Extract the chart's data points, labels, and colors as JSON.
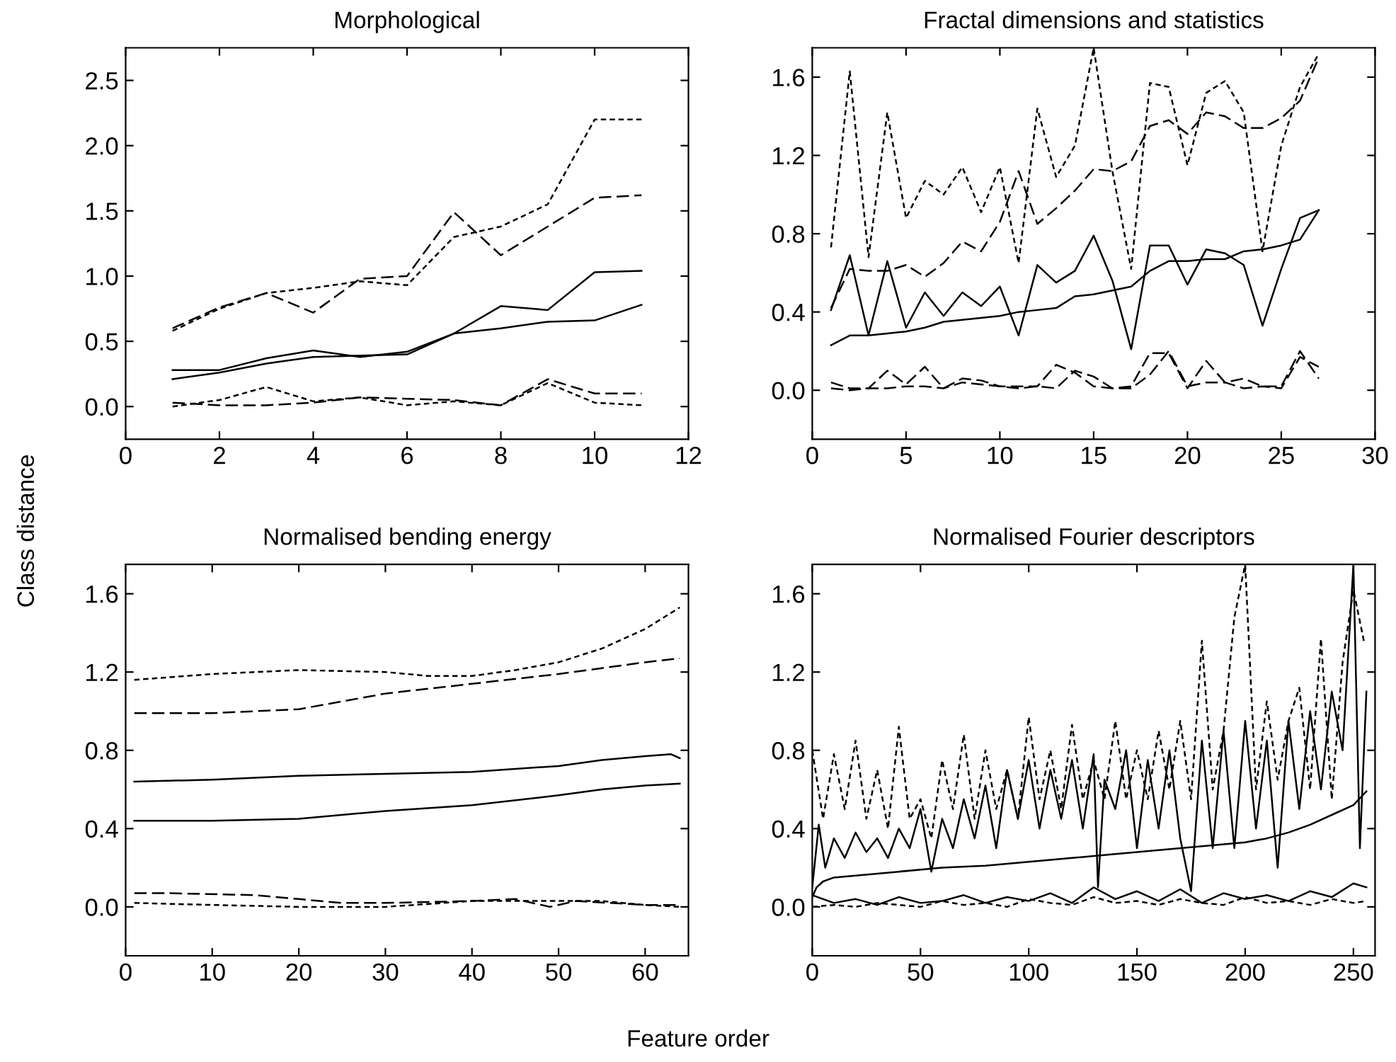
{
  "chart_data": [
    {
      "type": "line",
      "title": "Morphological",
      "ylabel": "Class distance",
      "xlim": [
        0,
        12
      ],
      "ylim": [
        -0.25,
        2.75
      ],
      "xticks": [
        0,
        2,
        4,
        6,
        8,
        10,
        12
      ],
      "yticks": [
        {
          "value": 0,
          "label": "0.0"
        },
        0.5,
        {
          "value": 1,
          "label": "1.0"
        },
        1.5,
        {
          "value": 2,
          "label": "2.0"
        },
        2.5
      ],
      "grid": false,
      "legend": false,
      "series": [
        {
          "color": "#000000",
          "line_style": "dotted",
          "x": [
            1,
            2,
            3,
            4,
            5,
            6,
            7,
            8,
            9,
            10,
            11
          ],
          "values": [
            0.58,
            0.75,
            0.87,
            0.91,
            0.96,
            0.93,
            1.3,
            1.38,
            1.55,
            2.2,
            2.2
          ]
        },
        {
          "color": "#000000",
          "line_style": "dashed",
          "x": [
            1,
            2,
            3,
            4,
            5,
            6,
            7,
            8,
            9,
            10,
            11
          ],
          "values": [
            0.6,
            0.76,
            0.87,
            0.72,
            0.98,
            1.0,
            1.49,
            1.16,
            1.38,
            1.6,
            1.62
          ]
        },
        {
          "color": "#000000",
          "line_style": "solid",
          "x": [
            1,
            2,
            3,
            4,
            5,
            6,
            7,
            8,
            9,
            10,
            11
          ],
          "values": [
            0.28,
            0.28,
            0.37,
            0.43,
            0.38,
            0.42,
            0.56,
            0.77,
            0.74,
            1.03,
            1.04
          ]
        },
        {
          "color": "#000000",
          "line_style": "solid",
          "x": [
            1,
            2,
            3,
            4,
            5,
            6,
            7,
            8,
            9,
            10,
            11
          ],
          "values": [
            0.21,
            0.26,
            0.33,
            0.38,
            0.39,
            0.4,
            0.56,
            0.6,
            0.65,
            0.66,
            0.78
          ]
        },
        {
          "color": "#000000",
          "line_style": "dashed",
          "x": [
            1,
            2,
            3,
            4,
            5,
            6,
            7,
            8,
            9,
            10,
            11
          ],
          "values": [
            0.03,
            0.01,
            0.01,
            0.03,
            0.07,
            0.06,
            0.05,
            0.01,
            0.21,
            0.1,
            0.1
          ]
        },
        {
          "color": "#000000",
          "line_style": "dotted",
          "x": [
            1,
            2,
            3,
            4,
            5,
            6,
            7,
            8,
            9,
            10,
            11
          ],
          "values": [
            0.0,
            0.05,
            0.15,
            0.04,
            0.07,
            0.01,
            0.04,
            0.01,
            0.18,
            0.03,
            0.01
          ]
        }
      ]
    },
    {
      "type": "line",
      "title": "Fractal dimensions and statistics",
      "xlim": [
        0,
        30
      ],
      "ylim": [
        -0.25,
        1.75
      ],
      "xticks": [
        0,
        5,
        10,
        15,
        20,
        25,
        30
      ],
      "yticks": [
        {
          "value": 0,
          "label": "0.0"
        },
        0.4,
        0.8,
        1.2,
        1.6
      ],
      "grid": false,
      "legend": false,
      "series": [
        {
          "color": "#000000",
          "line_style": "dotted",
          "x": [
            1,
            2,
            3,
            4,
            5,
            6,
            7,
            8,
            9,
            10,
            11,
            12,
            13,
            14,
            15,
            16,
            17,
            18,
            19,
            20,
            21,
            22,
            23,
            24,
            25,
            26,
            27
          ],
          "values": [
            0.73,
            1.63,
            0.68,
            1.42,
            0.88,
            1.07,
            1.0,
            1.14,
            0.91,
            1.14,
            0.65,
            1.44,
            1.09,
            1.25,
            1.75,
            1.12,
            0.62,
            1.57,
            1.55,
            1.15,
            1.52,
            1.58,
            1.42,
            0.71,
            1.25,
            1.55,
            1.72
          ]
        },
        {
          "color": "#000000",
          "line_style": "dashed",
          "x": [
            1,
            2,
            3,
            4,
            5,
            6,
            7,
            8,
            9,
            10,
            11,
            12,
            13,
            14,
            15,
            16,
            17,
            18,
            19,
            20,
            21,
            22,
            23,
            24,
            25,
            26,
            27
          ],
          "values": [
            0.42,
            0.62,
            0.61,
            0.61,
            0.64,
            0.58,
            0.65,
            0.76,
            0.71,
            0.86,
            1.12,
            0.85,
            0.93,
            1.02,
            1.13,
            1.12,
            1.17,
            1.35,
            1.38,
            1.31,
            1.42,
            1.4,
            1.34,
            1.34,
            1.39,
            1.48,
            1.7
          ]
        },
        {
          "color": "#000000",
          "line_style": "solid",
          "x": [
            1,
            2,
            3,
            4,
            5,
            6,
            7,
            8,
            9,
            10,
            11,
            12,
            13,
            14,
            15,
            16,
            17,
            18,
            19,
            20,
            21,
            22,
            23,
            24,
            25,
            26,
            27
          ],
          "values": [
            0.41,
            0.69,
            0.28,
            0.66,
            0.32,
            0.5,
            0.38,
            0.5,
            0.43,
            0.53,
            0.28,
            0.64,
            0.55,
            0.61,
            0.79,
            0.56,
            0.21,
            0.74,
            0.74,
            0.54,
            0.72,
            0.7,
            0.64,
            0.33,
            0.62,
            0.88,
            0.92
          ]
        },
        {
          "color": "#000000",
          "line_style": "solid",
          "x": [
            1,
            2,
            3,
            4,
            5,
            6,
            7,
            8,
            9,
            10,
            11,
            12,
            13,
            14,
            15,
            16,
            17,
            18,
            19,
            20,
            21,
            22,
            23,
            24,
            25,
            26,
            27
          ],
          "values": [
            0.23,
            0.28,
            0.28,
            0.29,
            0.3,
            0.32,
            0.35,
            0.36,
            0.37,
            0.38,
            0.4,
            0.41,
            0.42,
            0.48,
            0.49,
            0.51,
            0.53,
            0.61,
            0.66,
            0.66,
            0.67,
            0.67,
            0.71,
            0.72,
            0.74,
            0.77,
            0.92
          ]
        },
        {
          "color": "#000000",
          "line_style": "dashed",
          "x": [
            1,
            2,
            3,
            4,
            5,
            6,
            7,
            8,
            9,
            10,
            11,
            12,
            13,
            14,
            15,
            16,
            17,
            18,
            19,
            20,
            21,
            22,
            23,
            24,
            25,
            26,
            27
          ],
          "values": [
            0.04,
            0.01,
            0.01,
            0.1,
            0.03,
            0.12,
            0.01,
            0.06,
            0.05,
            0.02,
            0.02,
            0.02,
            0.13,
            0.09,
            0.02,
            0.01,
            0.02,
            0.19,
            0.19,
            0.01,
            0.15,
            0.04,
            0.06,
            0.02,
            0.02,
            0.2,
            0.06
          ]
        },
        {
          "color": "#000000",
          "line_style": "dashed",
          "x": [
            1,
            2,
            3,
            4,
            5,
            6,
            7,
            8,
            9,
            10,
            11,
            12,
            13,
            14,
            15,
            16,
            17,
            18,
            19,
            20,
            21,
            22,
            23,
            24,
            25,
            26,
            27
          ],
          "values": [
            0.01,
            0.0,
            0.01,
            0.01,
            0.02,
            0.02,
            0.01,
            0.04,
            0.03,
            0.02,
            0.01,
            0.02,
            0.01,
            0.1,
            0.07,
            0.01,
            0.01,
            0.08,
            0.2,
            0.02,
            0.04,
            0.04,
            0.01,
            0.02,
            0.01,
            0.17,
            0.12
          ]
        }
      ]
    },
    {
      "type": "line",
      "title": "Normalised bending energy",
      "xlim": [
        0,
        65
      ],
      "ylim": [
        -0.25,
        1.75
      ],
      "xticks": [
        0,
        10,
        20,
        30,
        40,
        50,
        60
      ],
      "yticks": [
        {
          "value": 0,
          "label": "0.0"
        },
        0.4,
        0.8,
        1.2,
        1.6
      ],
      "grid": false,
      "legend": false,
      "series": [
        {
          "color": "#000000",
          "line_style": "dotted",
          "x": [
            1,
            10,
            20,
            30,
            35,
            40,
            45,
            50,
            55,
            60,
            64
          ],
          "values": [
            1.16,
            1.19,
            1.21,
            1.2,
            1.18,
            1.18,
            1.21,
            1.25,
            1.32,
            1.42,
            1.53
          ]
        },
        {
          "color": "#000000",
          "line_style": "dashed",
          "x": [
            1,
            10,
            15,
            20,
            25,
            30,
            40,
            50,
            55,
            60,
            64
          ],
          "values": [
            0.99,
            0.99,
            1.0,
            1.01,
            1.05,
            1.09,
            1.14,
            1.19,
            1.22,
            1.25,
            1.27
          ]
        },
        {
          "color": "#000000",
          "line_style": "solid",
          "x": [
            1,
            10,
            20,
            30,
            40,
            50,
            55,
            60,
            63,
            64
          ],
          "values": [
            0.64,
            0.65,
            0.67,
            0.68,
            0.69,
            0.72,
            0.75,
            0.77,
            0.78,
            0.76
          ]
        },
        {
          "color": "#000000",
          "line_style": "solid",
          "x": [
            1,
            10,
            20,
            30,
            40,
            50,
            55,
            60,
            64
          ],
          "values": [
            0.44,
            0.44,
            0.45,
            0.49,
            0.52,
            0.57,
            0.6,
            0.62,
            0.63
          ]
        },
        {
          "color": "#000000",
          "line_style": "dashed",
          "x": [
            1,
            5,
            15,
            20,
            25,
            30,
            40,
            45,
            49,
            52,
            60,
            64
          ],
          "values": [
            0.07,
            0.07,
            0.06,
            0.04,
            0.02,
            0.02,
            0.03,
            0.04,
            0.0,
            0.03,
            0.01,
            0.01
          ]
        },
        {
          "color": "#000000",
          "line_style": "dotted",
          "x": [
            1,
            10,
            20,
            30,
            40,
            45,
            50,
            55,
            60,
            64
          ],
          "values": [
            0.02,
            0.01,
            0.0,
            0.0,
            0.03,
            0.03,
            0.03,
            0.03,
            0.01,
            0.0
          ]
        }
      ]
    },
    {
      "type": "line",
      "title": "Normalised Fourier descriptors",
      "xlabel": "Feature order",
      "xlim": [
        0,
        260
      ],
      "ylim": [
        -0.25,
        1.75
      ],
      "xticks": [
        0,
        50,
        100,
        150,
        200,
        250
      ],
      "yticks": [
        {
          "value": 0,
          "label": "0.0"
        },
        0.4,
        0.8,
        1.2,
        1.6
      ],
      "grid": false,
      "legend": false,
      "series": [
        {
          "color": "#000000",
          "line_style": "dotted",
          "x": [
            0,
            5,
            10,
            15,
            20,
            25,
            30,
            35,
            40,
            45,
            50,
            55,
            60,
            65,
            70,
            75,
            80,
            85,
            90,
            95,
            100,
            105,
            110,
            115,
            120,
            125,
            130,
            135,
            140,
            145,
            150,
            155,
            160,
            165,
            170,
            175,
            180,
            185,
            190,
            195,
            200,
            205,
            210,
            215,
            220,
            225,
            230,
            235,
            240,
            245,
            250,
            255
          ],
          "values": [
            0.8,
            0.45,
            0.78,
            0.5,
            0.85,
            0.45,
            0.7,
            0.4,
            0.92,
            0.45,
            0.55,
            0.35,
            0.75,
            0.5,
            0.88,
            0.45,
            0.8,
            0.5,
            0.7,
            0.45,
            0.97,
            0.55,
            0.8,
            0.5,
            0.93,
            0.55,
            0.75,
            0.55,
            0.95,
            0.55,
            0.8,
            0.55,
            0.9,
            0.6,
            0.95,
            0.55,
            1.36,
            0.6,
            0.9,
            1.48,
            1.75,
            0.6,
            1.05,
            0.65,
            0.95,
            1.12,
            0.6,
            1.37,
            0.55,
            1.25,
            1.62,
            1.35
          ]
        },
        {
          "color": "#000000",
          "line_style": "solid",
          "x": [
            0,
            3,
            6,
            10,
            15,
            20,
            25,
            30,
            35,
            40,
            45,
            50,
            55,
            60,
            65,
            70,
            75,
            80,
            85,
            90,
            95,
            100,
            105,
            110,
            115,
            120,
            125,
            130,
            132,
            135,
            140,
            145,
            150,
            155,
            160,
            165,
            170,
            175,
            180,
            185,
            190,
            195,
            200,
            205,
            210,
            215,
            220,
            225,
            230,
            235,
            240,
            245,
            250,
            253,
            256
          ],
          "values": [
            0.1,
            0.42,
            0.2,
            0.35,
            0.25,
            0.38,
            0.28,
            0.35,
            0.25,
            0.4,
            0.3,
            0.5,
            0.18,
            0.45,
            0.3,
            0.55,
            0.35,
            0.62,
            0.3,
            0.7,
            0.45,
            0.75,
            0.4,
            0.7,
            0.45,
            0.75,
            0.4,
            0.78,
            0.1,
            0.65,
            0.5,
            0.8,
            0.3,
            0.75,
            0.4,
            0.8,
            0.35,
            0.08,
            0.85,
            0.3,
            0.9,
            0.3,
            0.95,
            0.4,
            0.85,
            0.2,
            0.95,
            0.5,
            1.0,
            0.6,
            1.1,
            0.8,
            1.75,
            0.3,
            1.1
          ]
        },
        {
          "color": "#000000",
          "line_style": "solid",
          "x": [
            0,
            2,
            5,
            10,
            20,
            40,
            60,
            80,
            100,
            120,
            140,
            160,
            180,
            200,
            210,
            220,
            230,
            240,
            250,
            256
          ],
          "values": [
            0.05,
            0.1,
            0.13,
            0.15,
            0.16,
            0.18,
            0.2,
            0.21,
            0.23,
            0.25,
            0.27,
            0.29,
            0.31,
            0.33,
            0.35,
            0.38,
            0.42,
            0.47,
            0.52,
            0.59
          ]
        },
        {
          "color": "#000000",
          "line_style": "solid",
          "x": [
            0,
            10,
            20,
            30,
            40,
            50,
            60,
            70,
            80,
            90,
            100,
            110,
            120,
            130,
            140,
            150,
            160,
            170,
            180,
            190,
            200,
            210,
            220,
            230,
            240,
            250,
            256
          ],
          "values": [
            0.06,
            0.02,
            0.04,
            0.01,
            0.05,
            0.02,
            0.03,
            0.06,
            0.02,
            0.05,
            0.03,
            0.07,
            0.02,
            0.1,
            0.04,
            0.08,
            0.03,
            0.09,
            0.02,
            0.07,
            0.04,
            0.06,
            0.03,
            0.08,
            0.05,
            0.12,
            0.1
          ]
        },
        {
          "color": "#000000",
          "line_style": "dotted",
          "x": [
            0,
            10,
            20,
            30,
            40,
            50,
            60,
            70,
            80,
            90,
            100,
            110,
            120,
            130,
            140,
            150,
            160,
            170,
            180,
            190,
            200,
            210,
            220,
            230,
            240,
            250,
            256
          ],
          "values": [
            0.0,
            0.01,
            0.0,
            0.02,
            0.01,
            0.0,
            0.03,
            0.01,
            0.02,
            0.0,
            0.04,
            0.02,
            0.01,
            0.05,
            0.02,
            0.03,
            0.01,
            0.04,
            0.02,
            0.01,
            0.05,
            0.02,
            0.03,
            0.01,
            0.04,
            0.02,
            0.03
          ]
        }
      ]
    }
  ]
}
